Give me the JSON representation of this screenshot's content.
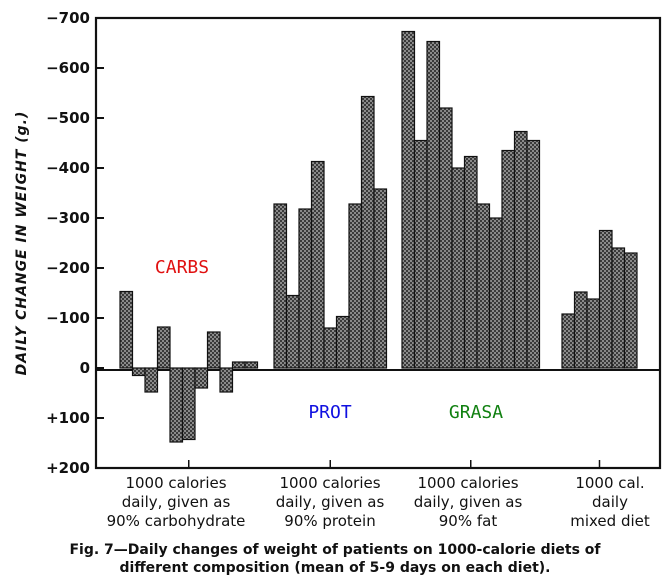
{
  "chart_data": {
    "type": "bar",
    "ylabel": "DAILY CHANGE IN WEIGHT (g.)",
    "ylim": [
      200,
      -700
    ],
    "yticks": [
      -700,
      -600,
      -500,
      -400,
      -300,
      -200,
      -100,
      0,
      100,
      200
    ],
    "ytick_labels": [
      "−700",
      "−600",
      "−500",
      "−400",
      "−300",
      "−200",
      "−100",
      "0",
      "+100",
      "+200"
    ],
    "series": [
      {
        "name": "1000 calories daily, given as 90% carbohydrate",
        "label_lines": [
          "1000 calories",
          "daily, given as",
          "90% carbohydrate"
        ],
        "annotation": "CARBS",
        "annotation_color": "#e01010",
        "values": [
          -153,
          15,
          48,
          -82,
          148,
          143,
          40,
          -72,
          48,
          -12,
          -12
        ]
      },
      {
        "name": "1000 calories daily, given as 90% protein",
        "label_lines": [
          "1000 calories",
          "daily, given as",
          "90% protein"
        ],
        "annotation": "PROT",
        "annotation_color": "#1010e0",
        "values": [
          -328,
          -145,
          -318,
          -413,
          -80,
          -103,
          -328,
          -543,
          -358
        ]
      },
      {
        "name": "1000 calories daily, given as 90% fat",
        "label_lines": [
          "1000 calories",
          "daily, given as",
          "90% fat"
        ],
        "annotation": "GRASA",
        "annotation_color": "#108010",
        "values": [
          -673,
          -455,
          -653,
          -520,
          -400,
          -423,
          -328,
          -300,
          -435,
          -473,
          -455
        ]
      },
      {
        "name": "1000 cal. daily mixed diet",
        "label_lines": [
          "1000 cal.",
          "daily",
          "mixed diet"
        ],
        "annotation": "",
        "annotation_color": "",
        "values": [
          -108,
          -152,
          -138,
          -275,
          -240,
          -230
        ]
      }
    ],
    "caption_lines": [
      "Fig. 7—Daily changes of weight of patients on 1000-calorie diets of",
      "different composition (mean of 5-9 days on each diet)."
    ]
  }
}
